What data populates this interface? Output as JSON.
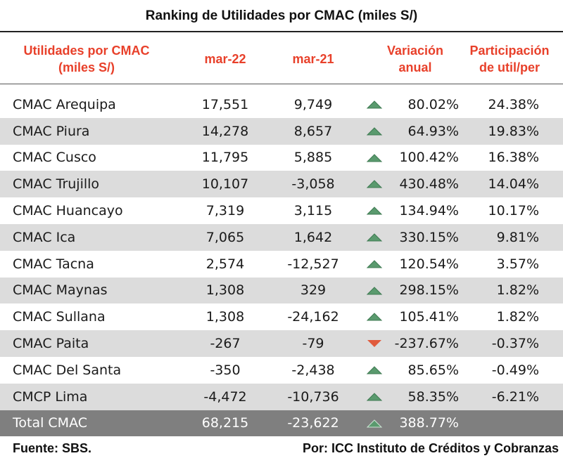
{
  "title": "Ranking de Utilidades por CMAC (miles S/)",
  "headers": {
    "name": [
      "Utilidades por CMAC",
      "(miles S/)"
    ],
    "mar22": "mar-22",
    "mar21": "mar-21",
    "variacion": [
      "Variación",
      "anual"
    ],
    "participacion": [
      "Participación",
      "de util/per"
    ]
  },
  "rows": [
    {
      "name": "CMAC Arequipa",
      "mar22": "17,551",
      "mar21": "9,749",
      "trend": "up",
      "variacion": "80.02%",
      "participacion": "24.38%"
    },
    {
      "name": "CMAC Piura",
      "mar22": "14,278",
      "mar21": "8,657",
      "trend": "up",
      "variacion": "64.93%",
      "participacion": "19.83%"
    },
    {
      "name": "CMAC Cusco",
      "mar22": "11,795",
      "mar21": "5,885",
      "trend": "up",
      "variacion": "100.42%",
      "participacion": "16.38%"
    },
    {
      "name": "CMAC Trujillo",
      "mar22": "10,107",
      "mar21": "-3,058",
      "trend": "up",
      "variacion": "430.48%",
      "participacion": "14.04%"
    },
    {
      "name": "CMAC Huancayo",
      "mar22": "7,319",
      "mar21": "3,115",
      "trend": "up",
      "variacion": "134.94%",
      "participacion": "10.17%"
    },
    {
      "name": "CMAC Ica",
      "mar22": "7,065",
      "mar21": "1,642",
      "trend": "up",
      "variacion": "330.15%",
      "participacion": "9.81%"
    },
    {
      "name": "CMAC Tacna",
      "mar22": "2,574",
      "mar21": "-12,527",
      "trend": "up",
      "variacion": "120.54%",
      "participacion": "3.57%"
    },
    {
      "name": "CMAC Maynas",
      "mar22": "1,308",
      "mar21": "329",
      "trend": "up",
      "variacion": "298.15%",
      "participacion": "1.82%"
    },
    {
      "name": "CMAC Sullana",
      "mar22": "1,308",
      "mar21": "-24,162",
      "trend": "up",
      "variacion": "105.41%",
      "participacion": "1.82%"
    },
    {
      "name": "CMAC Paita",
      "mar22": "-267",
      "mar21": "-79",
      "trend": "down",
      "variacion": "-237.67%",
      "participacion": "-0.37%"
    },
    {
      "name": "CMAC Del Santa",
      "mar22": "-350",
      "mar21": "-2,438",
      "trend": "up",
      "variacion": "85.65%",
      "participacion": "-0.49%"
    },
    {
      "name": "CMCP Lima",
      "mar22": "-4,472",
      "mar21": "-10,736",
      "trend": "up",
      "variacion": "58.35%",
      "participacion": "-6.21%"
    }
  ],
  "total": {
    "name": "Total CMAC",
    "mar22": "68,215",
    "mar21": "-23,622",
    "trend": "up",
    "variacion": "388.77%",
    "participacion": ""
  },
  "footer": {
    "source": "Fuente: SBS.",
    "author": "Por: ICC Instituto de Créditos y Cobranzas"
  },
  "colors": {
    "header_text": "#e8402a",
    "up_arrow": "#5a9a6e",
    "down_arrow": "#e05a3c",
    "row_shade": "#dcdcdc",
    "total_bg": "#7f7f7f"
  }
}
